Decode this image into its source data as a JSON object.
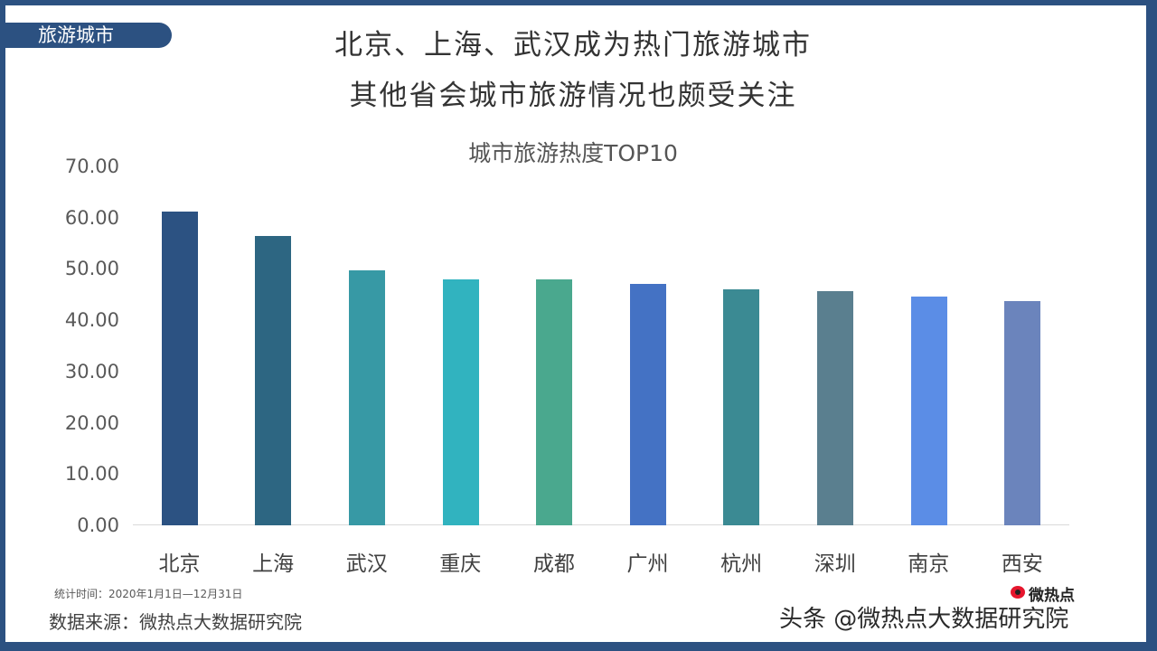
{
  "section_tag": "旅游城市",
  "headline": {
    "line1": "北京、上海、武汉成为热门旅游城市",
    "line2": "其他省会城市旅游情况也颇受关注"
  },
  "footer": {
    "stat_time": "统计时间：2020年1月1日—12月31日",
    "source": "数据来源：微热点大数据研究院",
    "watermark": "头条 @微热点大数据研究院",
    "logo_text": "微热点"
  },
  "y_ticks": [
    "70.00",
    "60.00",
    "50.00",
    "40.00",
    "30.00",
    "20.00",
    "10.00",
    "0.00"
  ],
  "chart_data": {
    "type": "bar",
    "title": "城市旅游热度TOP10",
    "xlabel": "",
    "ylabel": "",
    "ylim": [
      0,
      70
    ],
    "grid": false,
    "legend": "none",
    "categories": [
      "北京",
      "上海",
      "武汉",
      "重庆",
      "成都",
      "广州",
      "杭州",
      "深圳",
      "南京",
      "西安"
    ],
    "values": [
      61.2,
      56.4,
      49.7,
      48.0,
      48.0,
      47.1,
      46.0,
      45.7,
      44.6,
      43.7
    ],
    "colors": [
      "#2c5282",
      "#2d6682",
      "#3799a5",
      "#31b3bf",
      "#4aa88e",
      "#4472c4",
      "#3b8a93",
      "#5a7f8f",
      "#5b8de6",
      "#6b84bc"
    ]
  }
}
